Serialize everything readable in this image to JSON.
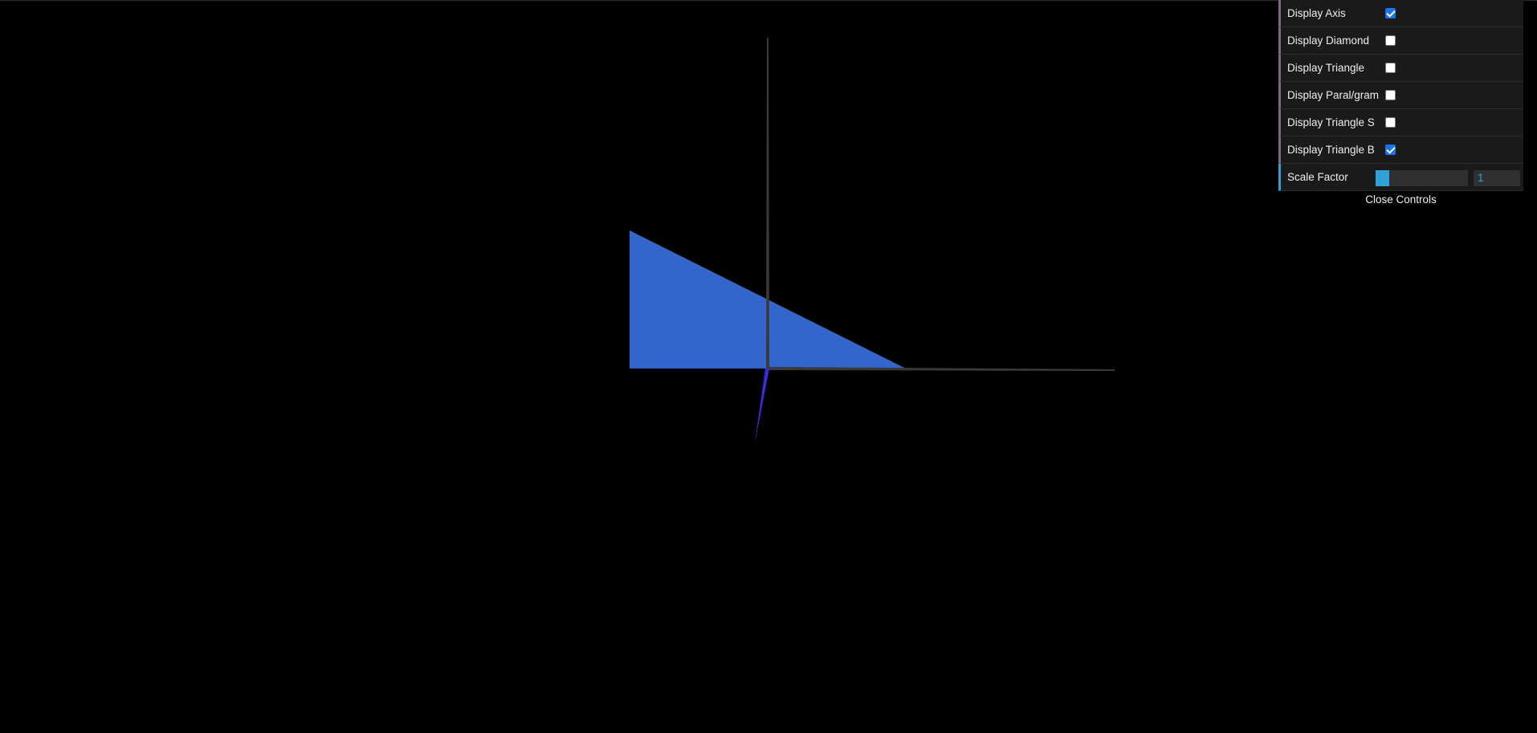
{
  "scene": {
    "colors": {
      "background": "#000000",
      "axis": "#3a3a3a",
      "triangle": "#3465cc",
      "z_axis": "#3a2cd8"
    }
  },
  "controls": {
    "items": [
      {
        "label": "Display Axis",
        "checked": true
      },
      {
        "label": "Display Diamond",
        "checked": false
      },
      {
        "label": "Display Triangle",
        "checked": false
      },
      {
        "label": "Display Paral/gram",
        "checked": false
      },
      {
        "label": "Display Triangle S",
        "checked": false
      },
      {
        "label": "Display Triangle B",
        "checked": true
      }
    ],
    "scale": {
      "label": "Scale Factor",
      "value": "1",
      "fill_fraction": 0.15
    },
    "close_label": "Close Controls"
  }
}
